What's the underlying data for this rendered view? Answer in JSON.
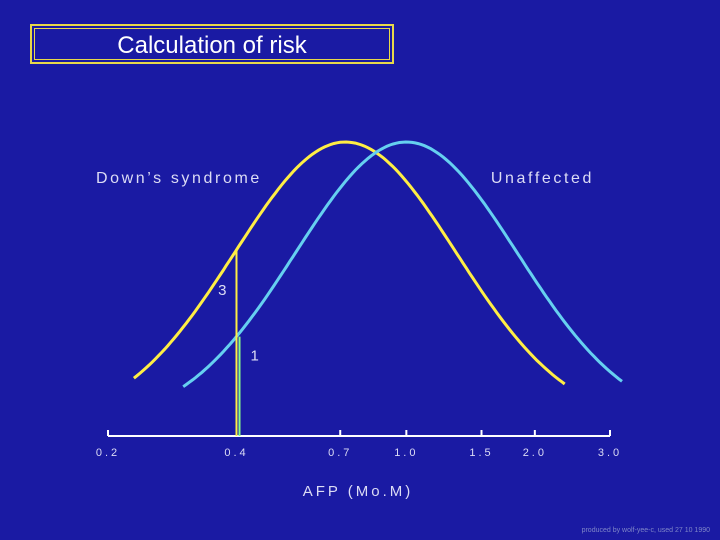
{
  "header": {
    "title": "Calculation of risk"
  },
  "footnote": "produced by wolf-yee-c, used 27 10 1990",
  "colors": {
    "background": "#1a1aa3",
    "downs": "#ffee44",
    "unaffected": "#66d0f0",
    "axis": "#ffffff",
    "marker": "#ffee44",
    "marker_unaffected": "#88ff88",
    "label": "#dcdcf5"
  },
  "chart_data": {
    "type": "line",
    "xlabel": "AFP (Mo.M)",
    "xscale": "log",
    "x_ticks": [
      "0.2",
      "0.4",
      "0.7",
      "1.0",
      "1.5",
      "2.0",
      "3.0"
    ],
    "x_tick_values": [
      0.2,
      0.4,
      0.7,
      1.0,
      1.5,
      2.0,
      3.0
    ],
    "series": [
      {
        "name": "Down’s syndrome",
        "type": "normal-on-log",
        "median": 0.72,
        "peak": 1.0,
        "x_range": [
          0.23,
          2.35
        ]
      },
      {
        "name": "Unaffected",
        "type": "normal-on-log",
        "median": 1.0,
        "peak": 1.0,
        "x_range": [
          0.3,
          3.2
        ]
      }
    ],
    "marker": {
      "x": 0.4,
      "labels": [
        "3",
        "1"
      ]
    }
  }
}
